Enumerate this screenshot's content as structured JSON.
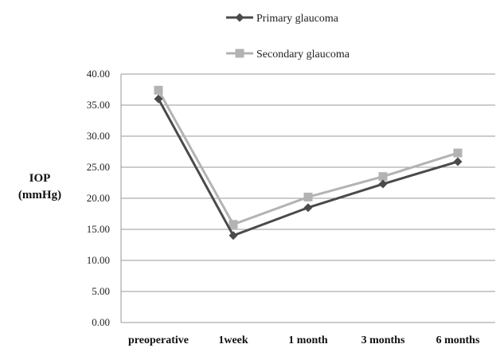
{
  "chart_data": {
    "type": "line",
    "categories": [
      "preoperative",
      "1week",
      "1 month",
      "3 months",
      "6 months"
    ],
    "series": [
      {
        "name": "Primary glaucoma",
        "values": [
          36.0,
          14.0,
          18.5,
          22.3,
          25.9
        ],
        "color": "#4a4a4a",
        "marker": "diamond"
      },
      {
        "name": "Secondary glaucoma",
        "values": [
          37.4,
          15.8,
          20.2,
          23.5,
          27.3
        ],
        "color": "#b3b3b3",
        "marker": "square"
      }
    ],
    "ylabel": [
      "IOP",
      "(mmHg)"
    ],
    "ylim": [
      0,
      40
    ],
    "yticks": [
      "0.00",
      "5.00",
      "10.00",
      "15.00",
      "20.00",
      "25.00",
      "30.00",
      "35.00",
      "40.00"
    ],
    "grid": true,
    "legend_position": "top"
  }
}
